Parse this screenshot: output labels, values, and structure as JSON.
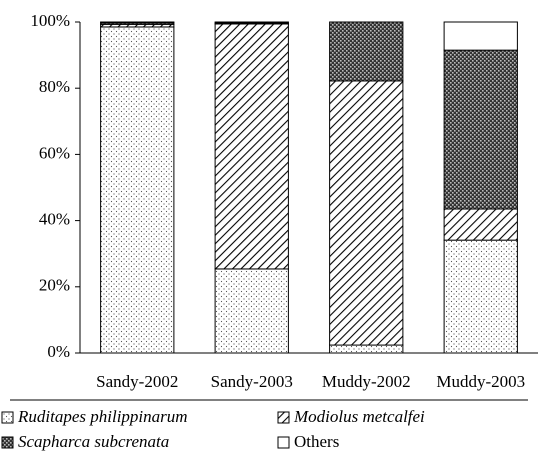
{
  "chart_data": {
    "type": "stacked_bar",
    "categories": [
      "Sandy-2002",
      "Sandy-2003",
      "Muddy-2002",
      "Muddy-2003"
    ],
    "series": [
      {
        "name": "Ruditapes philippinarum",
        "pattern": "dots",
        "color": "#ffffff",
        "values": [
          98.5,
          25.4,
          2.4,
          34.1
        ]
      },
      {
        "name": "Modiolus metcalfei",
        "pattern": "hatch",
        "color": "#ffffff",
        "values": [
          0.8,
          74.0,
          79.8,
          9.4
        ]
      },
      {
        "name": "Scapharca subcrenata",
        "pattern": "crosshatch",
        "color": "#555555",
        "values": [
          0.5,
          0.3,
          17.8,
          48.0
        ]
      },
      {
        "name": "Others",
        "pattern": "none",
        "color": "#ffffff",
        "values": [
          0.2,
          0.3,
          0.0,
          8.5
        ]
      }
    ],
    "ylim": [
      0,
      100
    ],
    "yticks": [
      {
        "value": 0,
        "label": "0%"
      },
      {
        "value": 20,
        "label": "20%"
      },
      {
        "value": 40,
        "label": "40%"
      },
      {
        "value": 60,
        "label": "60%"
      },
      {
        "value": 80,
        "label": "80%"
      },
      {
        "value": 100,
        "label": "100%"
      }
    ]
  }
}
